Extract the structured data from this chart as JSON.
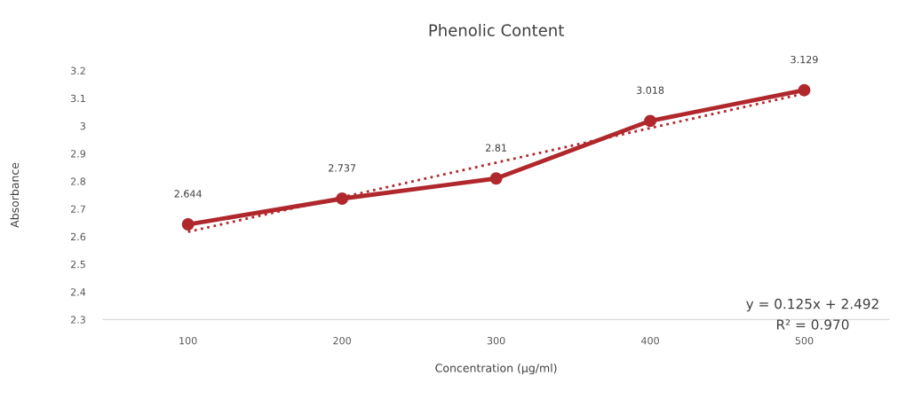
{
  "chart_data": {
    "type": "line",
    "title": "Phenolic Content",
    "xlabel": "Concentration (µg/ml)",
    "ylabel": "Absorbance",
    "categories": [
      "100",
      "200",
      "300",
      "400",
      "500"
    ],
    "series": [
      {
        "color": "#b0282c",
        "values": [
          2.644,
          2.737,
          2.81,
          3.018,
          3.129
        ],
        "value_labels": [
          "2.644",
          "2.737",
          "2.81",
          "3.018",
          "3.129"
        ],
        "marker": "circle",
        "line_style": "solid"
      },
      {
        "type": "line",
        "color": "#b0282c",
        "x": [
          "100",
          "500"
        ],
        "values": [
          2.617,
          3.117
        ],
        "marker": "none",
        "line_style": "dotted"
      }
    ],
    "ylim": [
      2.3,
      3.2
    ],
    "yticks": [
      2.3,
      2.4,
      2.5,
      2.6,
      2.7,
      2.8,
      2.9,
      3,
      3.1,
      3.2
    ],
    "grid": false,
    "legend": false,
    "annotations": [
      "y = 0.125x + 2.492",
      "R² = 0.970"
    ]
  }
}
